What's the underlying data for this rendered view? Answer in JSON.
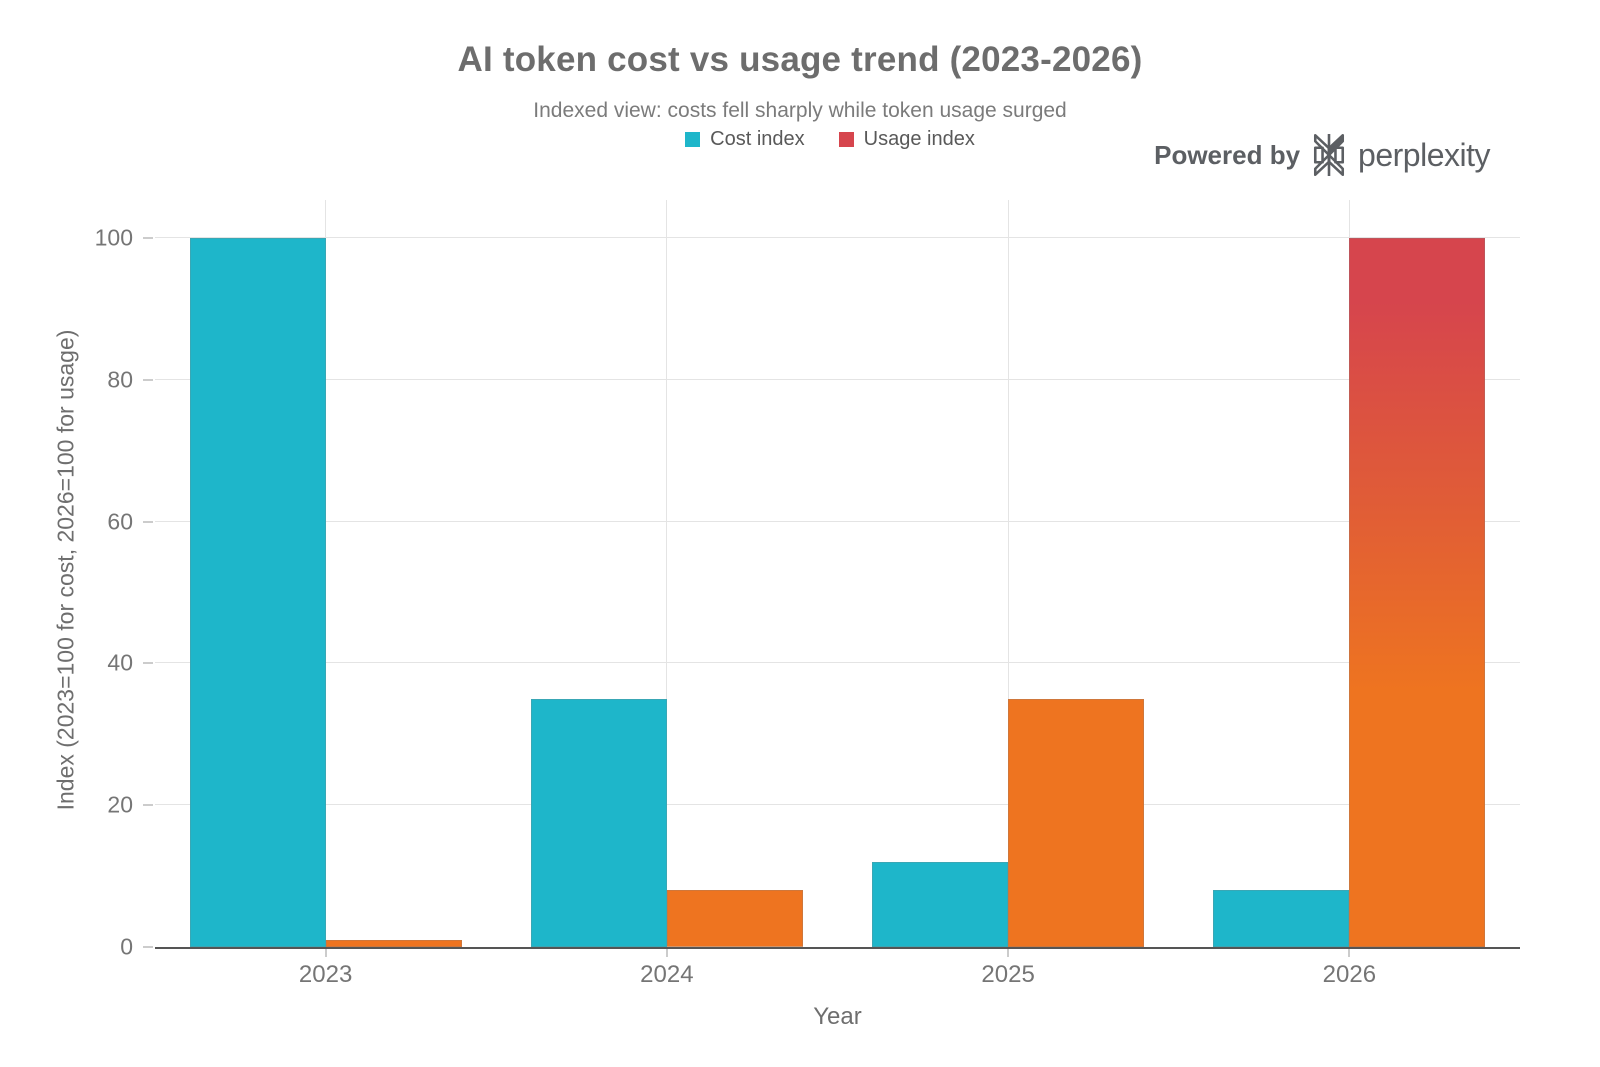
{
  "header": {
    "title": "AI token cost vs usage trend (2023-2026)",
    "subtitle": "Indexed view: costs fell sharply while token usage surged"
  },
  "branding": {
    "powered_by": "Powered by",
    "brand": "perplexity",
    "logo_icon": "perplexity-asterisk-icon",
    "color": "#5c5f63"
  },
  "legend": {
    "items": [
      {
        "label": "Cost index",
        "color": "#1eb6ca"
      },
      {
        "label": "Usage index",
        "color": "#d6454d"
      }
    ]
  },
  "chart_data": {
    "type": "bar",
    "title": "AI token cost vs usage trend (2023-2026)",
    "subtitle": "Indexed view: costs fell sharply while token usage surged",
    "categories": [
      "2023",
      "2024",
      "2025",
      "2026"
    ],
    "series": [
      {
        "name": "Cost index",
        "values": [
          100,
          35,
          12,
          8
        ],
        "color": "#1eb6ca"
      },
      {
        "name": "Usage index",
        "values": [
          1,
          8,
          35,
          100
        ],
        "color": "#d6454d",
        "gradient": {
          "bottom": "#ee7420",
          "mid": "#e05c37",
          "top": "#d6454d"
        }
      }
    ],
    "xlabel": "Year",
    "ylabel": "Index (2023=100 for cost, 2026=100 for usage)",
    "ylim": [
      0,
      100
    ],
    "yticks": [
      0,
      20,
      40,
      60,
      80,
      100
    ],
    "grid": true,
    "legend_position": "top-center",
    "colors": {
      "grid": "#e4e4e4",
      "axis_line": "#555555",
      "tick": "#cccccc",
      "tick_label": "#757575",
      "title": "#6d6d6d",
      "subtitle": "#7b7b7b"
    }
  }
}
